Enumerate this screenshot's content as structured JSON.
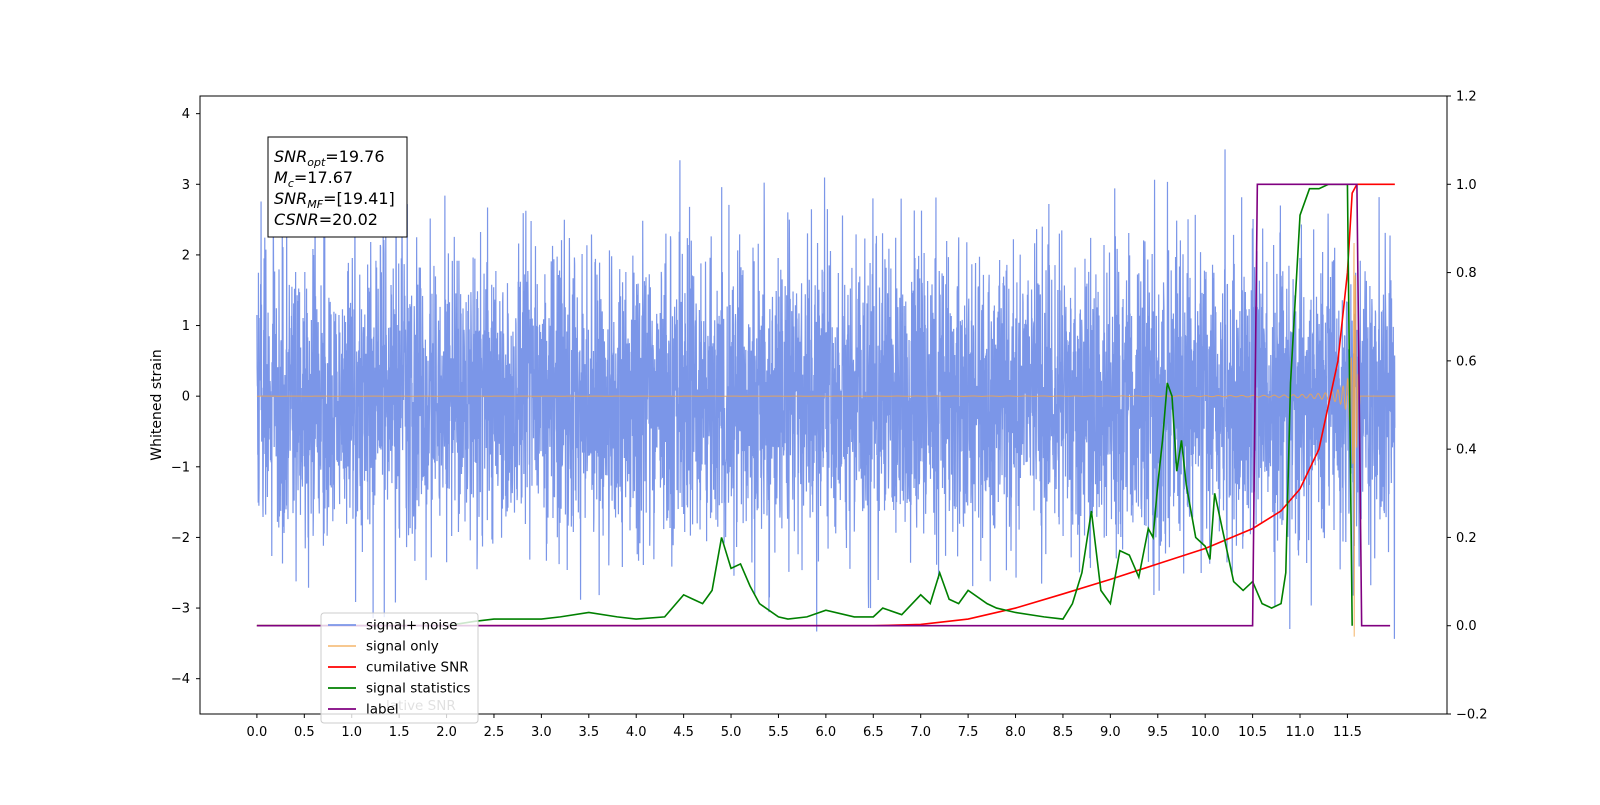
{
  "chart_data": {
    "type": "line",
    "title": "",
    "xlabel": "",
    "ylabel": "Whitened strain",
    "xlim": [
      -0.6,
      12.55
    ],
    "ylim": [
      -4.5,
      4.25
    ],
    "y2lim": [
      -0.2,
      1.2
    ],
    "grid": false,
    "legend_position": "lower-left",
    "x_ticks": [
      0.0,
      0.5,
      1.0,
      1.5,
      2.0,
      2.5,
      3.0,
      3.5,
      4.0,
      4.5,
      5.0,
      5.5,
      6.0,
      6.5,
      7.0,
      7.5,
      8.0,
      8.5,
      9.0,
      9.5,
      10.0,
      10.5,
      11.0,
      11.5
    ],
    "x_tick_labels": [
      "0.0",
      "0.5",
      "1.0",
      "1.5",
      "2.0",
      "2.5",
      "3.0",
      "3.5",
      "4.0",
      "4.5",
      "5.0",
      "5.5",
      "6.0",
      "6.5",
      "7.0",
      "7.5",
      "8.0",
      "8.5",
      "9.0",
      "9.5",
      "10.0",
      "10.5",
      "11.0",
      "11.5"
    ],
    "y_ticks": [
      -4,
      -3,
      -2,
      -1,
      0,
      1,
      2,
      3,
      4
    ],
    "y_tick_labels": [
      "−4",
      "−3",
      "−2",
      "−1",
      "0",
      "1",
      "2",
      "3",
      "4"
    ],
    "y2_ticks": [
      -0.2,
      0.0,
      0.2,
      0.4,
      0.6,
      0.8,
      1.0,
      1.2
    ],
    "y2_tick_labels": [
      "−0.2",
      "0.0",
      "0.2",
      "0.4",
      "0.6",
      "0.8",
      "1.0",
      "1.2"
    ],
    "colors": {
      "signal_noise": "#7b96e8",
      "signal_only": "#f2a64d",
      "cumulative_snr": "#ff0000",
      "signal_statistics": "#008000",
      "label": "#800080"
    },
    "series": [
      {
        "name": "signal+ noise",
        "axis": "left",
        "description_values": "white noise, approx std 1.05, peak about 3.85 near x=11.55, min about -4.1 near x=11.57",
        "x_range": [
          0.0,
          12.0
        ]
      },
      {
        "name": "signal only",
        "axis": "left",
        "chirp": {
          "start": 0.0,
          "merger": 11.57,
          "end": 12.0,
          "amplitude_at_merger": 3.0
        }
      },
      {
        "name": "cumilative SNR",
        "axis": "right",
        "x": [
          0.0,
          6.5,
          7.0,
          7.5,
          8.0,
          8.5,
          9.0,
          9.5,
          10.0,
          10.5,
          10.8,
          11.0,
          11.2,
          11.4,
          11.5,
          11.55,
          11.6,
          12.0
        ],
        "y": [
          0.0,
          0.0,
          0.003,
          0.015,
          0.04,
          0.072,
          0.105,
          0.14,
          0.175,
          0.22,
          0.26,
          0.31,
          0.4,
          0.6,
          0.8,
          0.98,
          1.0,
          1.0
        ]
      },
      {
        "name": "signal statistics",
        "axis": "right",
        "x": [
          0.0,
          2.0,
          2.3,
          2.5,
          3.0,
          3.2,
          3.5,
          3.8,
          4.0,
          4.3,
          4.5,
          4.6,
          4.7,
          4.8,
          4.9,
          5.0,
          5.1,
          5.2,
          5.3,
          5.5,
          5.6,
          5.8,
          6.0,
          6.3,
          6.5,
          6.6,
          6.8,
          7.0,
          7.1,
          7.2,
          7.3,
          7.4,
          7.5,
          7.7,
          7.8,
          8.0,
          8.3,
          8.5,
          8.6,
          8.7,
          8.8,
          8.9,
          9.0,
          9.1,
          9.2,
          9.3,
          9.4,
          9.45,
          9.5,
          9.55,
          9.6,
          9.65,
          9.7,
          9.75,
          9.8,
          9.9,
          10.0,
          10.05,
          10.1,
          10.2,
          10.3,
          10.4,
          10.5,
          10.6,
          10.7,
          10.8,
          10.85,
          10.9,
          11.0,
          11.1,
          11.2,
          11.3,
          11.4,
          11.5,
          11.55
        ],
        "y": [
          0.0,
          0.0,
          0.01,
          0.015,
          0.015,
          0.02,
          0.03,
          0.02,
          0.015,
          0.02,
          0.07,
          0.06,
          0.05,
          0.08,
          0.2,
          0.13,
          0.14,
          0.09,
          0.05,
          0.02,
          0.015,
          0.02,
          0.035,
          0.02,
          0.02,
          0.04,
          0.025,
          0.07,
          0.05,
          0.12,
          0.06,
          0.05,
          0.08,
          0.05,
          0.04,
          0.03,
          0.02,
          0.015,
          0.05,
          0.12,
          0.26,
          0.08,
          0.05,
          0.17,
          0.16,
          0.11,
          0.22,
          0.2,
          0.32,
          0.42,
          0.55,
          0.52,
          0.35,
          0.42,
          0.32,
          0.2,
          0.18,
          0.15,
          0.3,
          0.2,
          0.1,
          0.08,
          0.1,
          0.05,
          0.04,
          0.05,
          0.12,
          0.55,
          0.93,
          0.99,
          0.99,
          1.0,
          1.0,
          1.0,
          0.0
        ]
      },
      {
        "name": "label",
        "axis": "right",
        "x": [
          0.0,
          10.5,
          10.55,
          11.6,
          11.65,
          11.95
        ],
        "y": [
          0.0,
          0.0,
          1.0,
          1.0,
          0.0,
          0.0
        ]
      }
    ],
    "legend": {
      "entries": [
        "signal+ noise",
        "signal only",
        "cumilative SNR",
        "signal statistics",
        "label"
      ],
      "ghost_text": "lative SNR"
    },
    "annotation": {
      "lines": [
        {
          "main": "SNR",
          "sub": "opt",
          "rest": "=19.76"
        },
        {
          "main": "M",
          "sub": "c",
          "rest": "=17.67"
        },
        {
          "main": "SNR",
          "sub": "MF",
          "rest": "=[19.41]"
        },
        {
          "main": "CSNR",
          "sub": "",
          "rest": "=20.02"
        }
      ]
    }
  }
}
